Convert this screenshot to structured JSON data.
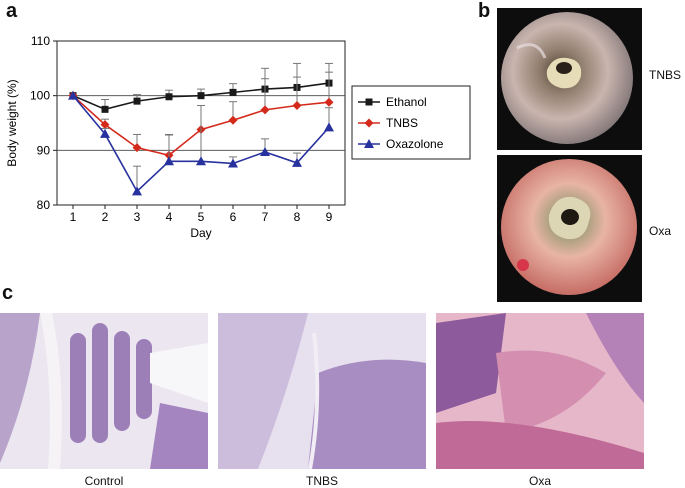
{
  "panels": {
    "a": "a",
    "b": "b",
    "c": "c"
  },
  "chart_data": {
    "type": "line",
    "xlabel": "Day",
    "ylabel": "Body weight (%)",
    "x": [
      1,
      2,
      3,
      4,
      5,
      6,
      7,
      8,
      9
    ],
    "xlim": [
      0.5,
      9.5
    ],
    "ylim": [
      80,
      110
    ],
    "yticks": [
      80,
      90,
      100,
      110
    ],
    "reference_lines": [
      90,
      100
    ],
    "legend_position": "right",
    "series": [
      {
        "name": "Ethanol",
        "color": "#1a1a1a",
        "marker": "square",
        "values": [
          100,
          97.5,
          99,
          99.8,
          100,
          100.6,
          101.2,
          101.5,
          102.3
        ],
        "error": [
          0,
          1.8,
          1.2,
          1.2,
          1.2,
          1.6,
          3.8,
          4.4,
          3.6
        ]
      },
      {
        "name": "TNBS",
        "color": "#d42a1c",
        "marker": "diamond",
        "values": [
          100,
          94.7,
          90.5,
          89.1,
          93.8,
          95.5,
          97.4,
          98.2,
          98.8
        ],
        "error": [
          0,
          1.0,
          2.4,
          3.8,
          4.4,
          3.4,
          5.7,
          5.2,
          5.5
        ]
      },
      {
        "name": "Oxazolone",
        "color": "#28329e",
        "marker": "triangle",
        "values": [
          100,
          93,
          82.5,
          88,
          88,
          87.6,
          89.7,
          87.7,
          94.2
        ],
        "error": [
          0,
          1.0,
          4.6,
          4.8,
          10.2,
          1.2,
          2.4,
          1.8,
          3.6
        ]
      }
    ]
  },
  "endoscopy": [
    {
      "label": "TNBS",
      "variant": "pale"
    },
    {
      "label": "Oxa",
      "variant": "red"
    }
  ],
  "histology": [
    {
      "caption": "Control",
      "stain": "purple"
    },
    {
      "caption": "TNBS",
      "stain": "purple"
    },
    {
      "caption": "Oxa",
      "stain": "pink"
    }
  ]
}
